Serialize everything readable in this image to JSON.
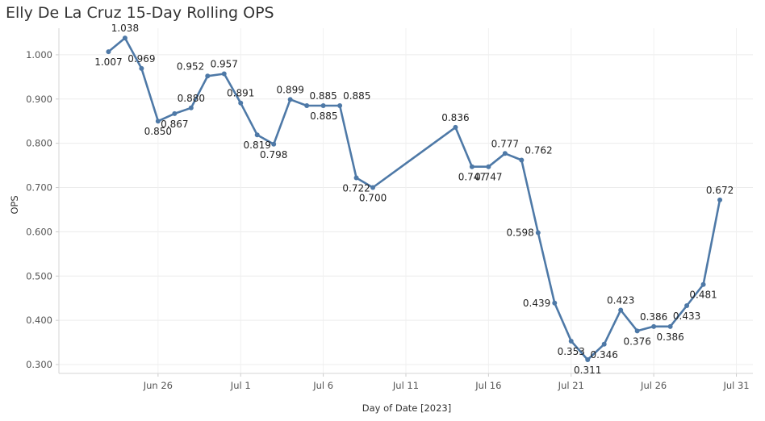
{
  "chart_data": {
    "type": "line",
    "title": "Elly De La Cruz 15-Day Rolling OPS",
    "xlabel": "Day of Date [2023]",
    "ylabel": "OPS",
    "ylim": [
      0.28,
      1.06
    ],
    "yticks": [
      "1.000",
      "0.900",
      "0.800",
      "0.700",
      "0.600",
      "0.500",
      "0.400",
      "0.300"
    ],
    "ytick_values": [
      1.0,
      0.9,
      0.8,
      0.7,
      0.6,
      0.5,
      0.4,
      0.3
    ],
    "xlim": [
      "2023-06-20",
      "2023-08-01"
    ],
    "xticks": [
      {
        "label": "Jun 26",
        "date": "2023-06-26"
      },
      {
        "label": "Jul 1",
        "date": "2023-07-01"
      },
      {
        "label": "Jul 6",
        "date": "2023-07-06"
      },
      {
        "label": "Jul 11",
        "date": "2023-07-11"
      },
      {
        "label": "Jul 16",
        "date": "2023-07-16"
      },
      {
        "label": "Jul 21",
        "date": "2023-07-21"
      },
      {
        "label": "Jul 26",
        "date": "2023-07-26"
      },
      {
        "label": "Jul 31",
        "date": "2023-07-31"
      }
    ],
    "grid": true,
    "color": "#4e79a7",
    "series": [
      {
        "name": "OPS",
        "points": [
          {
            "date": "2023-06-23",
            "value": 1.007,
            "label": "1.007",
            "label_pos": "below"
          },
          {
            "date": "2023-06-24",
            "value": 1.038,
            "label": "1.038",
            "label_pos": "above"
          },
          {
            "date": "2023-06-25",
            "value": 0.969,
            "label": "0.969",
            "label_pos": "above"
          },
          {
            "date": "2023-06-26",
            "value": 0.85,
            "label": "0.850",
            "label_pos": "below"
          },
          {
            "date": "2023-06-27",
            "value": 0.867,
            "label": "0.867",
            "label_pos": "below"
          },
          {
            "date": "2023-06-28",
            "value": 0.88,
            "label": "0.880",
            "label_pos": "above"
          },
          {
            "date": "2023-06-29",
            "value": 0.952,
            "label": "0.952",
            "label_pos": "above-left"
          },
          {
            "date": "2023-06-30",
            "value": 0.957,
            "label": "0.957",
            "label_pos": "above"
          },
          {
            "date": "2023-07-01",
            "value": 0.891,
            "label": "0.891",
            "label_pos": "above"
          },
          {
            "date": "2023-07-02",
            "value": 0.819,
            "label": "0.819",
            "label_pos": "below"
          },
          {
            "date": "2023-07-03",
            "value": 0.798,
            "label": "0.798",
            "label_pos": "below"
          },
          {
            "date": "2023-07-04",
            "value": 0.899,
            "label": "0.899",
            "label_pos": "above"
          },
          {
            "date": "2023-07-05",
            "value": 0.885,
            "label": "0.885",
            "label_pos": "below-right"
          },
          {
            "date": "2023-07-06",
            "value": 0.885,
            "label": "0.885",
            "label_pos": "above"
          },
          {
            "date": "2023-07-07",
            "value": 0.885,
            "label": "0.885",
            "label_pos": "above-right"
          },
          {
            "date": "2023-07-08",
            "value": 0.722,
            "label": "0.722",
            "label_pos": "below"
          },
          {
            "date": "2023-07-09",
            "value": 0.7,
            "label": "0.700",
            "label_pos": "below"
          },
          {
            "date": "2023-07-14",
            "value": 0.836,
            "label": "0.836",
            "label_pos": "above"
          },
          {
            "date": "2023-07-15",
            "value": 0.747,
            "label": "0.747",
            "label_pos": "below"
          },
          {
            "date": "2023-07-16",
            "value": 0.747,
            "label": "0.747",
            "label_pos": "below"
          },
          {
            "date": "2023-07-17",
            "value": 0.777,
            "label": "0.777",
            "label_pos": "above"
          },
          {
            "date": "2023-07-18",
            "value": 0.762,
            "label": "0.762",
            "label_pos": "above-right"
          },
          {
            "date": "2023-07-19",
            "value": 0.598,
            "label": "0.598",
            "label_pos": "left"
          },
          {
            "date": "2023-07-20",
            "value": 0.439,
            "label": "0.439",
            "label_pos": "left"
          },
          {
            "date": "2023-07-21",
            "value": 0.353,
            "label": "0.353",
            "label_pos": "below"
          },
          {
            "date": "2023-07-22",
            "value": 0.311,
            "label": "0.311",
            "label_pos": "below"
          },
          {
            "date": "2023-07-23",
            "value": 0.346,
            "label": "0.346",
            "label_pos": "below"
          },
          {
            "date": "2023-07-24",
            "value": 0.423,
            "label": "0.423",
            "label_pos": "above"
          },
          {
            "date": "2023-07-25",
            "value": 0.376,
            "label": "0.376",
            "label_pos": "below"
          },
          {
            "date": "2023-07-26",
            "value": 0.386,
            "label": "0.386",
            "label_pos": "above"
          },
          {
            "date": "2023-07-27",
            "value": 0.386,
            "label": "0.386",
            "label_pos": "below"
          },
          {
            "date": "2023-07-28",
            "value": 0.433,
            "label": "0.433",
            "label_pos": "below"
          },
          {
            "date": "2023-07-29",
            "value": 0.481,
            "label": "0.481",
            "label_pos": "below"
          },
          {
            "date": "2023-07-30",
            "value": 0.672,
            "label": "0.672",
            "label_pos": "above"
          }
        ]
      }
    ]
  }
}
